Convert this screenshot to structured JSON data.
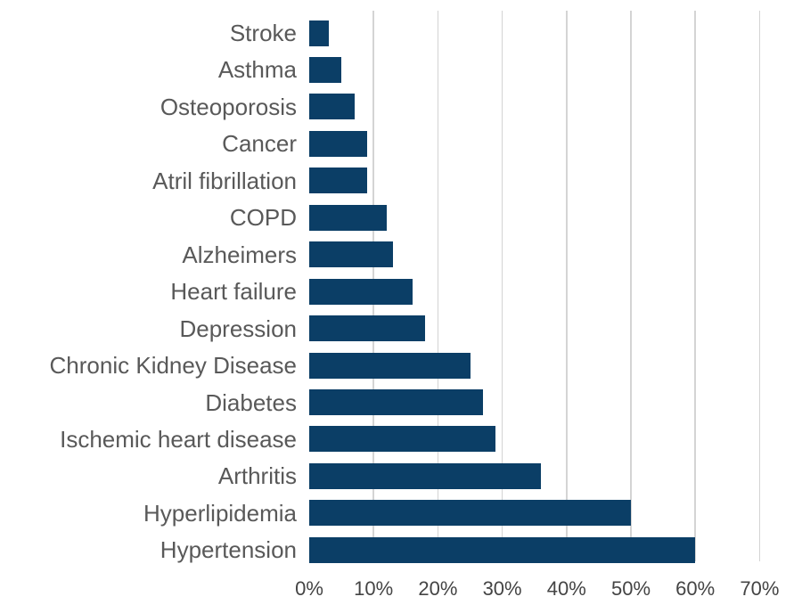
{
  "chart_data": {
    "type": "bar",
    "orientation": "horizontal",
    "title": "",
    "xlabel": "",
    "ylabel": "",
    "categories": [
      "Stroke",
      "Asthma",
      "Osteoporosis",
      "Cancer",
      "Atril fibrillation",
      "COPD",
      "Alzheimers",
      "Heart failure",
      "Depression",
      "Chronic Kidney Disease",
      "Diabetes",
      "Ischemic heart disease",
      "Arthritis",
      "Hyperlipidemia",
      "Hypertension"
    ],
    "values": [
      3,
      5,
      7,
      9,
      9,
      12,
      13,
      16,
      18,
      25,
      27,
      29,
      36,
      50,
      60
    ],
    "unit": "%",
    "xlim": [
      0,
      70
    ],
    "x_ticks": [
      "0%",
      "10%",
      "20%",
      "30%",
      "40%",
      "50%",
      "60%",
      "70%"
    ],
    "grid": "vertical-gridlines-10-to-70",
    "legend": "none",
    "data_labels": "none",
    "colors": {
      "bar": "#0b3e66",
      "gridline": "#d4d4d4",
      "category_text": "#595959",
      "tick_text": "#444444",
      "background": "#ffffff"
    }
  }
}
